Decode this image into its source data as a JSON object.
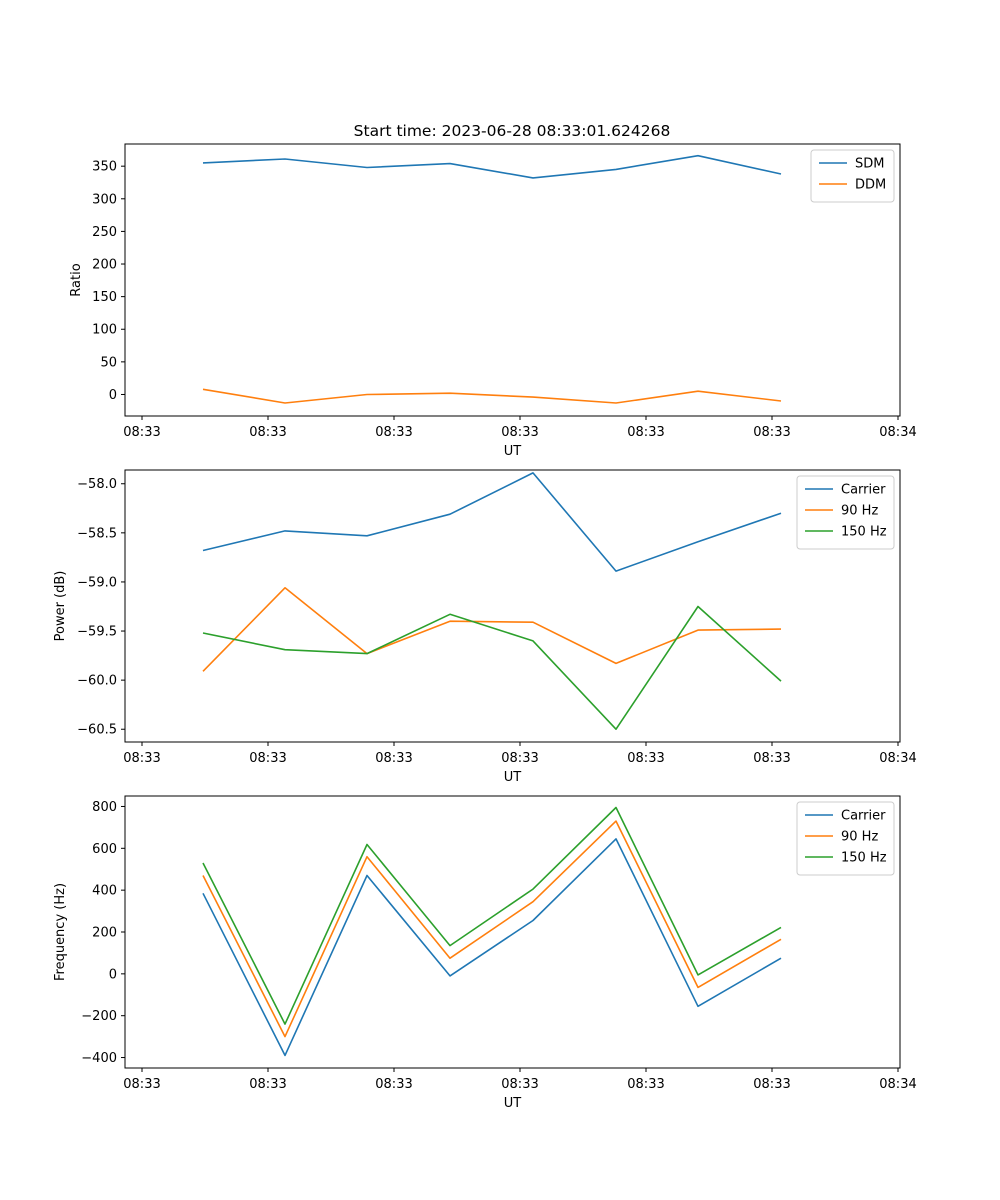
{
  "title": "Start time: 2023-06-28 08:33:01.624268",
  "chart_data": [
    {
      "type": "line",
      "title": "Start time: 2023-06-28 08:33:01.624268",
      "xlabel": "UT",
      "ylabel": "Ratio",
      "x_tick_labels": [
        "08:33",
        "08:33",
        "08:33",
        "08:33",
        "08:33",
        "08:33",
        "08:34"
      ],
      "y_ticks": [
        0,
        50,
        100,
        150,
        200,
        250,
        300,
        350
      ],
      "y_tick_labels": [
        "0",
        "50",
        "100",
        "150",
        "200",
        "250",
        "300",
        "350"
      ],
      "ylim": [
        -33,
        384
      ],
      "legend_position": "top-right",
      "series": [
        {
          "name": "SDM",
          "color": "#1f77b4",
          "values": [
            355,
            361,
            348,
            354,
            332,
            345,
            366,
            338
          ]
        },
        {
          "name": "DDM",
          "color": "#ff7f0e",
          "values": [
            8,
            -13,
            0,
            2,
            -4,
            -13,
            5,
            -10
          ]
        }
      ]
    },
    {
      "type": "line",
      "xlabel": "UT",
      "ylabel": "Power (dB)",
      "x_tick_labels": [
        "08:33",
        "08:33",
        "08:33",
        "08:33",
        "08:33",
        "08:33",
        "08:34"
      ],
      "y_ticks": [
        -60.5,
        -60.0,
        -59.5,
        -59.0,
        -58.5,
        -58.0
      ],
      "y_tick_labels": [
        "−60.5",
        "−60.0",
        "−59.5",
        "−59.0",
        "−58.5",
        "−58.0"
      ],
      "ylim": [
        -60.63,
        -57.86
      ],
      "legend_position": "top-right",
      "series": [
        {
          "name": "Carrier",
          "color": "#1f77b4",
          "values": [
            -58.68,
            -58.48,
            -58.53,
            -58.31,
            -57.89,
            -58.89,
            -58.59,
            -58.3
          ]
        },
        {
          "name": "90 Hz",
          "color": "#ff7f0e",
          "values": [
            -59.91,
            -59.06,
            -59.73,
            -59.4,
            -59.41,
            -59.83,
            -59.49,
            -59.48
          ]
        },
        {
          "name": "150 Hz",
          "color": "#2ca02c",
          "values": [
            -59.52,
            -59.69,
            -59.73,
            -59.33,
            -59.6,
            -60.5,
            -59.25,
            -60.01
          ]
        }
      ]
    },
    {
      "type": "line",
      "xlabel": "UT",
      "ylabel": "Frequency (Hz)",
      "x_tick_labels": [
        "08:33",
        "08:33",
        "08:33",
        "08:33",
        "08:33",
        "08:33",
        "08:34"
      ],
      "y_ticks": [
        -400,
        -200,
        0,
        200,
        400,
        600,
        800
      ],
      "y_tick_labels": [
        "−400",
        "−200",
        "0",
        "200",
        "400",
        "600",
        "800"
      ],
      "ylim": [
        -450,
        850
      ],
      "legend_position": "top-right",
      "series": [
        {
          "name": "Carrier",
          "color": "#1f77b4",
          "values": [
            385,
            -390,
            470,
            -10,
            255,
            645,
            -155,
            75
          ]
        },
        {
          "name": "90 Hz",
          "color": "#ff7f0e",
          "values": [
            470,
            -300,
            560,
            75,
            345,
            730,
            -65,
            165
          ]
        },
        {
          "name": "150 Hz",
          "color": "#2ca02c",
          "values": [
            530,
            -240,
            618,
            135,
            405,
            795,
            -5,
            222
          ]
        }
      ]
    }
  ]
}
